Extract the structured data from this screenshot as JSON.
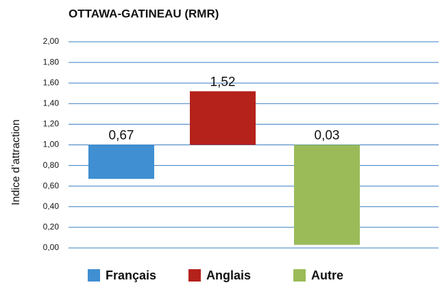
{
  "chart_data": {
    "type": "bar",
    "title": "OTTAWA-GATINEAU (RMR)",
    "y_label": "Indice d’attraction",
    "categories": [
      "Français",
      "Anglais",
      "Autre"
    ],
    "values": [
      0.67,
      1.52,
      0.03
    ],
    "value_labels": [
      "0,67",
      "1,52",
      "0,03"
    ],
    "colors": [
      "#3f8fd2",
      "#b5211b",
      "#9bbb59"
    ],
    "baseline": 1,
    "ylim": [
      0,
      2
    ],
    "yticks": [
      {
        "value": 0,
        "label": "0,00"
      },
      {
        "value": 0.2,
        "label": "0,20"
      },
      {
        "value": 0.4,
        "label": "0,40"
      },
      {
        "value": 0.6,
        "label": "0,60"
      },
      {
        "value": 0.8,
        "label": "0,80"
      },
      {
        "value": 1,
        "label": "1,00"
      },
      {
        "value": 1.2,
        "label": "1,20"
      },
      {
        "value": 1.4,
        "label": "1,40"
      },
      {
        "value": 1.6,
        "label": "1,60"
      },
      {
        "value": 1.8,
        "label": "1,80"
      },
      {
        "value": 2,
        "label": "2,00"
      }
    ],
    "grid": true,
    "legend": "bottom"
  }
}
